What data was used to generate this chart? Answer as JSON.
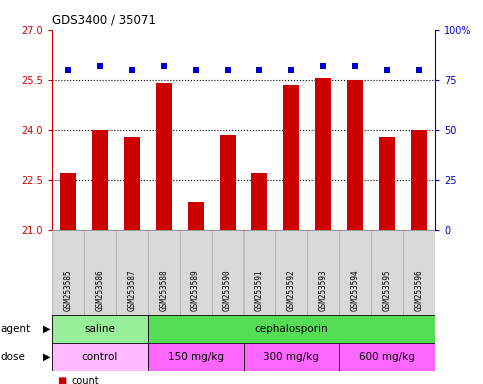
{
  "title": "GDS3400 / 35071",
  "samples": [
    "GSM253585",
    "GSM253586",
    "GSM253587",
    "GSM253588",
    "GSM253589",
    "GSM253590",
    "GSM253591",
    "GSM253592",
    "GSM253593",
    "GSM253594",
    "GSM253595",
    "GSM253596"
  ],
  "bar_values": [
    22.7,
    24.0,
    23.8,
    25.4,
    21.85,
    23.85,
    22.7,
    25.35,
    25.55,
    25.5,
    23.8,
    24.0
  ],
  "percentile_values": [
    80,
    82,
    80,
    82,
    80,
    80,
    80,
    80,
    82,
    82,
    80,
    80
  ],
  "bar_color": "#cc0000",
  "dot_color": "#0000cc",
  "ylim_left": [
    21,
    27
  ],
  "ylim_right": [
    0,
    100
  ],
  "yticks_left": [
    21,
    22.5,
    24,
    25.5,
    27
  ],
  "yticks_right": [
    0,
    25,
    50,
    75,
    100
  ],
  "dotted_lines": [
    22.5,
    24.0,
    25.5
  ],
  "agent_groups": [
    {
      "label": "saline",
      "start": 0,
      "end": 3,
      "color": "#99ee99"
    },
    {
      "label": "cephalosporin",
      "start": 3,
      "end": 12,
      "color": "#55dd55"
    }
  ],
  "dose_groups": [
    {
      "label": "control",
      "start": 0,
      "end": 3,
      "color": "#ffbbff"
    },
    {
      "label": "150 mg/kg",
      "start": 3,
      "end": 6,
      "color": "#ff66ff"
    },
    {
      "label": "300 mg/kg",
      "start": 6,
      "end": 9,
      "color": "#ff66ff"
    },
    {
      "label": "600 mg/kg",
      "start": 9,
      "end": 12,
      "color": "#ff66ff"
    }
  ],
  "fig_width": 4.83,
  "fig_height": 3.84,
  "dpi": 100
}
